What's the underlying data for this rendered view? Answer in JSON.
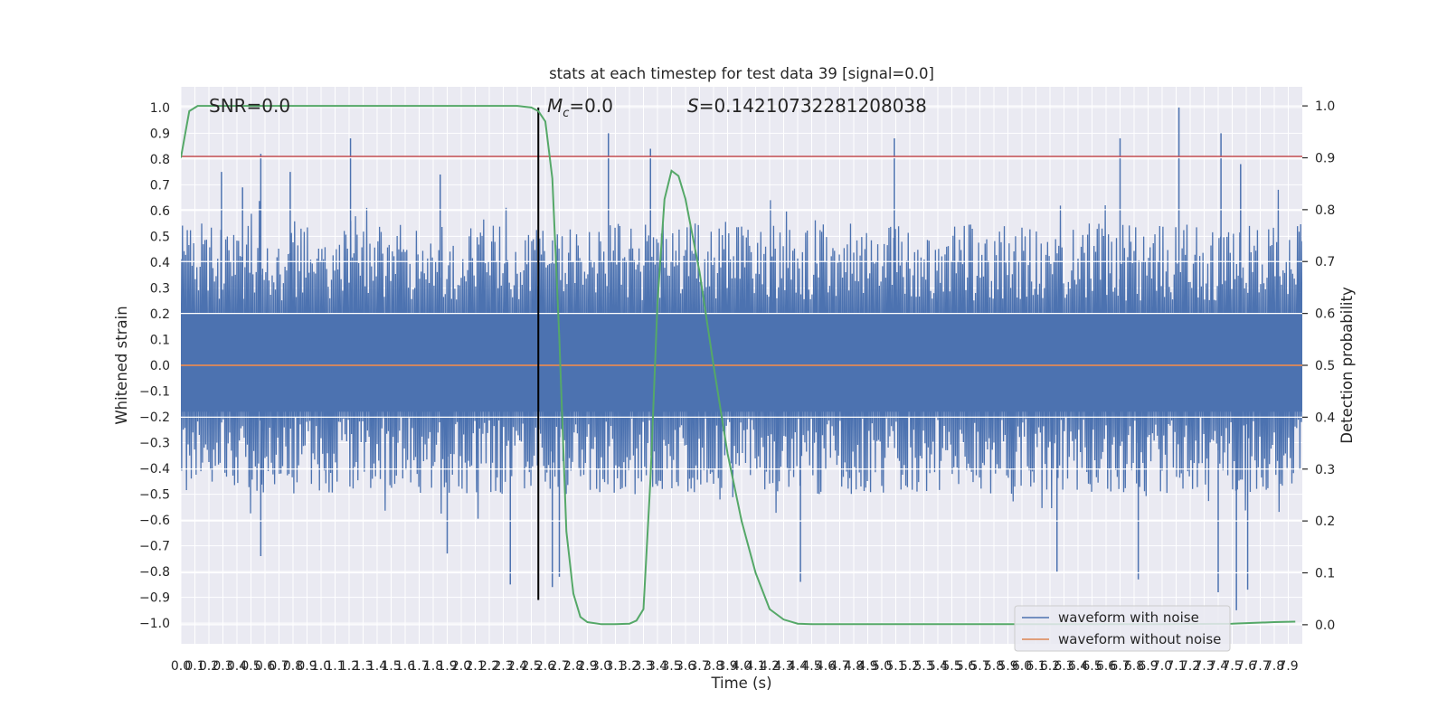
{
  "chart_data": {
    "type": "line",
    "title": "stats at each timestep for test data 39 [signal=0.0]",
    "xlabel": "Time (s)",
    "ylabel": "Whitened strain",
    "y2label": "Detection probability",
    "xlim": [
      0.0,
      8.0
    ],
    "ylim": [
      -1.08,
      1.08
    ],
    "y2lim": [
      -0.0368,
      1.0368
    ],
    "x_ticks": [
      0.0,
      0.1,
      0.2,
      0.3,
      0.4,
      0.5,
      0.6,
      0.7,
      0.8,
      0.9,
      1.0,
      1.1,
      1.2,
      1.3,
      1.4,
      1.5,
      1.6,
      1.7,
      1.8,
      1.9,
      2.0,
      2.1,
      2.2,
      2.3,
      2.4,
      2.5,
      2.6,
      2.7,
      2.8,
      2.9,
      3.0,
      3.1,
      3.2,
      3.3,
      3.4,
      3.5,
      3.6,
      3.7,
      3.8,
      3.9,
      4.0,
      4.1,
      4.2,
      4.3,
      4.4,
      4.5,
      4.6,
      4.7,
      4.8,
      4.9,
      5.0,
      5.1,
      5.2,
      5.3,
      5.4,
      5.5,
      5.6,
      5.7,
      5.8,
      5.9,
      6.0,
      6.1,
      6.2,
      6.3,
      6.4,
      6.5,
      6.6,
      6.7,
      6.8,
      6.9,
      7.0,
      7.1,
      7.2,
      7.3,
      7.4,
      7.5,
      7.6,
      7.7,
      7.8,
      7.9
    ],
    "y_ticks": [
      -1.0,
      -0.9,
      -0.8,
      -0.7,
      -0.6,
      -0.5,
      -0.4,
      -0.3,
      -0.2,
      -0.1,
      0.0,
      0.1,
      0.2,
      0.3,
      0.4,
      0.5,
      0.6,
      0.7,
      0.8,
      0.9,
      1.0
    ],
    "y2_ticks": [
      0.0,
      0.1,
      0.2,
      0.3,
      0.4,
      0.5,
      0.6,
      0.7,
      0.8,
      0.9,
      1.0
    ],
    "grid": true,
    "legend": {
      "placement": "bottom-right",
      "entries": [
        "waveform with noise",
        "waveform without noise"
      ]
    },
    "annotations": {
      "snr": "SNR=0.0",
      "mc_symbol": "M",
      "mc_subscript": "c",
      "mc_value": "=0.0",
      "s_symbol": "S",
      "s_value": "=0.14210732281208038"
    },
    "series": [
      {
        "name": "waveform with noise",
        "color": "#4c72b0",
        "axis": "left",
        "noise_envelope": {
          "typical_max": 0.55,
          "typical_min": -0.5
        },
        "spikes": [
          {
            "x": 0.29,
            "y": 0.75
          },
          {
            "x": 0.44,
            "y": 0.69
          },
          {
            "x": 0.57,
            "y": 0.82
          },
          {
            "x": 0.78,
            "y": 0.75
          },
          {
            "x": 1.21,
            "y": 0.88
          },
          {
            "x": 1.85,
            "y": 0.74
          },
          {
            "x": 3.05,
            "y": 0.9
          },
          {
            "x": 3.35,
            "y": 0.84
          },
          {
            "x": 5.09,
            "y": 0.88
          },
          {
            "x": 6.7,
            "y": 0.88
          },
          {
            "x": 7.12,
            "y": 1.0
          },
          {
            "x": 7.42,
            "y": 0.9
          },
          {
            "x": 7.56,
            "y": 0.78
          },
          {
            "x": 0.57,
            "y": -0.74
          },
          {
            "x": 1.9,
            "y": -0.73
          },
          {
            "x": 2.35,
            "y": -0.85
          },
          {
            "x": 2.65,
            "y": -0.86
          },
          {
            "x": 4.42,
            "y": -0.84
          },
          {
            "x": 6.25,
            "y": -0.8
          },
          {
            "x": 6.83,
            "y": -0.83
          },
          {
            "x": 7.4,
            "y": -0.88
          },
          {
            "x": 7.53,
            "y": -0.95
          },
          {
            "x": 7.61,
            "y": -0.87
          },
          {
            "x": 2.7,
            "y": -0.82
          }
        ]
      },
      {
        "name": "waveform without noise",
        "color": "#dd8452",
        "axis": "left",
        "x": [
          0.0,
          8.0
        ],
        "y": [
          0.0,
          0.0
        ]
      },
      {
        "color": "#55a868",
        "axis": "right",
        "x": [
          0.0,
          0.06,
          0.12,
          0.2,
          0.4,
          1.0,
          2.0,
          2.4,
          2.5,
          2.55,
          2.6,
          2.65,
          2.7,
          2.75,
          2.8,
          2.85,
          2.9,
          3.0,
          3.1,
          3.2,
          3.25,
          3.3,
          3.35,
          3.4,
          3.45,
          3.5,
          3.55,
          3.6,
          3.7,
          3.8,
          3.9,
          4.0,
          4.1,
          4.2,
          4.3,
          4.4,
          4.5,
          5.0,
          6.0,
          7.0,
          7.5,
          7.8,
          7.95
        ],
        "y": [
          0.9,
          0.99,
          1.0,
          1.0,
          1.0,
          1.0,
          1.0,
          1.0,
          0.997,
          0.99,
          0.97,
          0.86,
          0.55,
          0.18,
          0.06,
          0.015,
          0.005,
          0.001,
          0.001,
          0.002,
          0.008,
          0.03,
          0.28,
          0.62,
          0.82,
          0.875,
          0.865,
          0.82,
          0.68,
          0.5,
          0.33,
          0.2,
          0.1,
          0.03,
          0.01,
          0.002,
          0.001,
          0.001,
          0.001,
          0.001,
          0.002,
          0.005,
          0.006
        ]
      }
    ],
    "reference_lines": [
      {
        "orientation": "horizontal",
        "axis": "left",
        "value": 0.81,
        "color": "#c44e52"
      },
      {
        "orientation": "vertical",
        "value": 2.55,
        "color": "#000000"
      }
    ]
  }
}
